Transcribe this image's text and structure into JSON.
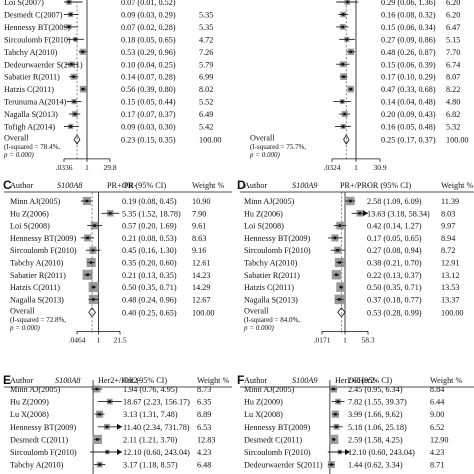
{
  "figure": {
    "panel_A_partial": {
      "rows": [
        {
          "author": "Loi S(2007)",
          "or": "0.07 (0.01, 0.52)",
          "weight": ""
        },
        {
          "author": "Desmedt C(2007)",
          "or": "0.09 (0.03, 0.29)",
          "weight": "5.35"
        },
        {
          "author": "Hennessy BT(2009)",
          "or": "0.07 (0.02, 0.28)",
          "weight": "5.35"
        },
        {
          "author": "Sircoulomb F(2010)",
          "or": "0.18 (0.05, 0.65)",
          "weight": "4.72"
        },
        {
          "author": "Tabchy A(2010)",
          "or": "0.53 (0.29, 0.96)",
          "weight": "7.26"
        },
        {
          "author": "Dedeurwaerder S(2011)",
          "or": "0.10 (0.04, 0.25)",
          "weight": "5.79"
        },
        {
          "author": "Sabatier R(2011)",
          "or": "0.14 (0.07, 0.28)",
          "weight": "6.99"
        },
        {
          "author": "Hatzis C(2011)",
          "or": "0.56 (0.39, 0.80)",
          "weight": "8.02"
        },
        {
          "author": "Terunuma A(2014)",
          "or": "0.15 (0.05, 0.44)",
          "weight": "5.52"
        },
        {
          "author": "Nagalla S(2013)",
          "or": "0.17 (0.07, 0.37)",
          "weight": "6.49"
        },
        {
          "author": "Tofigh A(2014)",
          "or": "0.09 (0.03, 0.30)",
          "weight": "5.42"
        }
      ],
      "overall": {
        "label": "Overall",
        "or": "0.23 (0.15, 0.35)",
        "weight": "100.00"
      },
      "het_line1": "(I-squared = 78.4%,",
      "het_line2": "p = 0.000)",
      "axis": {
        "left": ".0336",
        "mid": "1",
        "right": "29.8"
      }
    },
    "panel_B_partial": {
      "rows": [
        {
          "or": "0.29 (0.06, 1.36)",
          "weight": "6.20"
        },
        {
          "or": "0.16 (0.08, 0.32)",
          "weight": "6.20"
        },
        {
          "or": "0.15 (0.06, 0.34)",
          "weight": "6.47"
        },
        {
          "or": "0.27 (0.09, 0.86)",
          "weight": "5.15"
        },
        {
          "or": "0.48 (0.26, 0.87)",
          "weight": "7.70"
        },
        {
          "or": "0.15 (0.06, 0.39)",
          "weight": "6.74"
        },
        {
          "or": "0.17 (0.10, 0.29)",
          "weight": "8.07"
        },
        {
          "or": "0.47 (0.33, 0.68)",
          "weight": "8.22"
        },
        {
          "or": "0.14 (0.04, 0.48)",
          "weight": "4.80"
        },
        {
          "or": "0.20 (0.09, 0.43)",
          "weight": "6.82"
        },
        {
          "or": "0.16 (0.05, 0.48)",
          "weight": "5.32"
        }
      ],
      "overall": {
        "label": "Overall",
        "or": "0.25 (0.17, 0.37)",
        "weight": "100.00"
      },
      "het_line1": "(I-squared = 75.7%,",
      "het_line2": "p = 0.000)",
      "axis": {
        "left": ".0324",
        "mid": "1",
        "right": "30.9"
      }
    },
    "panel_C": {
      "letter": "C",
      "hdr_author": "Author",
      "hdr_gene": "S100A8",
      "hdr_group": "PR+/PR-",
      "hdr_or": "OR (95% CI)",
      "hdr_weight": "Weight %",
      "rows": [
        {
          "author": "Minn AJ(2005)",
          "or": "0.19 (0.08, 0.45)",
          "weight": "10.90"
        },
        {
          "author": "Hu Z(2006)",
          "or": "5.35 (1.52, 18.78)",
          "weight": "7.90"
        },
        {
          "author": "Loi S(2008)",
          "or": "0.57 (0.20, 1.69)",
          "weight": "9.61"
        },
        {
          "author": "Hennessy BT(2009)",
          "or": "0.21 (0.08, 0.53)",
          "weight": "8.63"
        },
        {
          "author": "Sircoulomb F(2010)",
          "or": "0.45 (0.16, 1.30)",
          "weight": "9.16"
        },
        {
          "author": "Tabchy A(2010)",
          "or": "0.35 (0.20, 0.60)",
          "weight": "12.61"
        },
        {
          "author": "Sabatier R(2011)",
          "or": "0.21 (0.13, 0.35)",
          "weight": "14.23"
        },
        {
          "author": "Hatzis C(2011)",
          "or": "0.50 (0.35, 0.71)",
          "weight": "14.29"
        },
        {
          "author": "Nagalla S(2013)",
          "or": "0.48 (0.24, 0.96)",
          "weight": "12.67"
        }
      ],
      "overall": {
        "label": "Overall",
        "or": "0.40 (0.25, 0.65)",
        "weight": "100.00"
      },
      "het_line1": "(I-squared = 72.8%,",
      "het_line2": "p = 0.000)",
      "axis": {
        "left": ".0464",
        "mid": "1",
        "right": "21.5"
      }
    },
    "panel_D": {
      "letter": "D",
      "hdr_author": "Author",
      "hdr_gene": "S100A9",
      "hdr_group": "PR+/PR-",
      "hdr_or": "OR (95% CI)",
      "hdr_weight": "Weight %",
      "rows": [
        {
          "author": "Minn AJ(2005)",
          "or": "2.58 (1.09, 6.09)",
          "weight": "11.39"
        },
        {
          "author": "Hu Z(2006)",
          "or": "13.63 (3.18, 58.34)",
          "weight": "8.03"
        },
        {
          "author": "Loi S(2008)",
          "or": "0.42 (0.14, 1.27)",
          "weight": "9.97"
        },
        {
          "author": "Hennessy BT(2009)",
          "or": "0.17 (0.05, 0.65)",
          "weight": "8.94"
        },
        {
          "author": "Sircoulomb F(2010)",
          "or": "0.27 (0.08, 0.94)",
          "weight": "8.72"
        },
        {
          "author": "Tabchy A(2010)",
          "or": "0.38 (0.21, 0.70)",
          "weight": "12.91"
        },
        {
          "author": "Sabatier R(2011)",
          "or": "0.22 (0.13, 0.37)",
          "weight": "13.12"
        },
        {
          "author": "Hatzis C(2011)",
          "or": "0.50 (0.35, 0.71)",
          "weight": "13.53"
        },
        {
          "author": "Nagalla S(2013)",
          "or": "0.37 (0.18, 0.77)",
          "weight": "13.37"
        }
      ],
      "overall": {
        "label": "Overall",
        "or": "0.53 (0.28, 0.99)",
        "weight": "100.00"
      },
      "het_line1": "(I-squared = 84.0%,",
      "het_line2": "p = 0.000)",
      "axis": {
        "left": ".0171",
        "mid": "1",
        "right": "58.3"
      }
    },
    "panel_E": {
      "letter": "E",
      "hdr_author": "Author",
      "hdr_gene": "S100A8",
      "hdr_group": "Her2+/Her2-",
      "hdr_or": "OR (95% CI)",
      "hdr_weight": "Weight %",
      "rows": [
        {
          "author": "Minn AJ(2005)",
          "or": "1.94 (0.76, 4.95)",
          "weight": "8.73"
        },
        {
          "author": "Hu Z(2009)",
          "or": "18.67 (2.23, 156.17)",
          "weight": "6.35"
        },
        {
          "author": "Lu X(2008)",
          "or": "3.13 (1.31, 7.48)",
          "weight": "8.89"
        },
        {
          "author": "Hennessy BT(2009)",
          "or": "11.40 (2.34, 731.78)",
          "weight": "6.53"
        },
        {
          "author": "Desmedt C(2011)",
          "or": "2.11 (1.21, 3.70)",
          "weight": "12.83"
        },
        {
          "author": "Sircoulomb F(2010)",
          "or": "12.10 (0.60, 243.04)",
          "weight": "4.23"
        },
        {
          "author": "Tabchy A(2010)",
          "or": "3.17 (1.18, 8.57)",
          "weight": "6.48"
        }
      ]
    },
    "panel_F": {
      "letter": "F",
      "hdr_author": "Author",
      "hdr_gene": "S100A9",
      "hdr_group": "Her2+/Her2-",
      "hdr_or": "OR (95% CI)",
      "hdr_weight": "Weight %",
      "rows": [
        {
          "author": "Minn AJ(2005)",
          "or": "2.45 (0.95, 6.34)",
          "weight": "8.84"
        },
        {
          "author": "Hu Z(2009)",
          "or": "7.82 (1.55, 39.37)",
          "weight": "6.44"
        },
        {
          "author": "Lu X(2008)",
          "or": "3.99 (1.66, 9.62)",
          "weight": "9.00"
        },
        {
          "author": "Hennessy BT(2009)",
          "or": "5.18 (1.06, 25.18)",
          "weight": "6.52"
        },
        {
          "author": "Desmedt C(2011)",
          "or": "2.59 (1.58, 4.25)",
          "weight": "12.90"
        },
        {
          "author": "Sircoulomb F(2010)",
          "or": "12.10 (0.60, 243.04)",
          "weight": "4.23"
        },
        {
          "author": "Dedeurwaerder S(2011)",
          "or": "1.44 (0.62, 3.34)",
          "weight": "8.71"
        }
      ]
    }
  },
  "colors": {
    "ink": "#111111",
    "ci_line": "#222222",
    "box_grey": "#9a9a9a",
    "dashed": "#666666"
  }
}
